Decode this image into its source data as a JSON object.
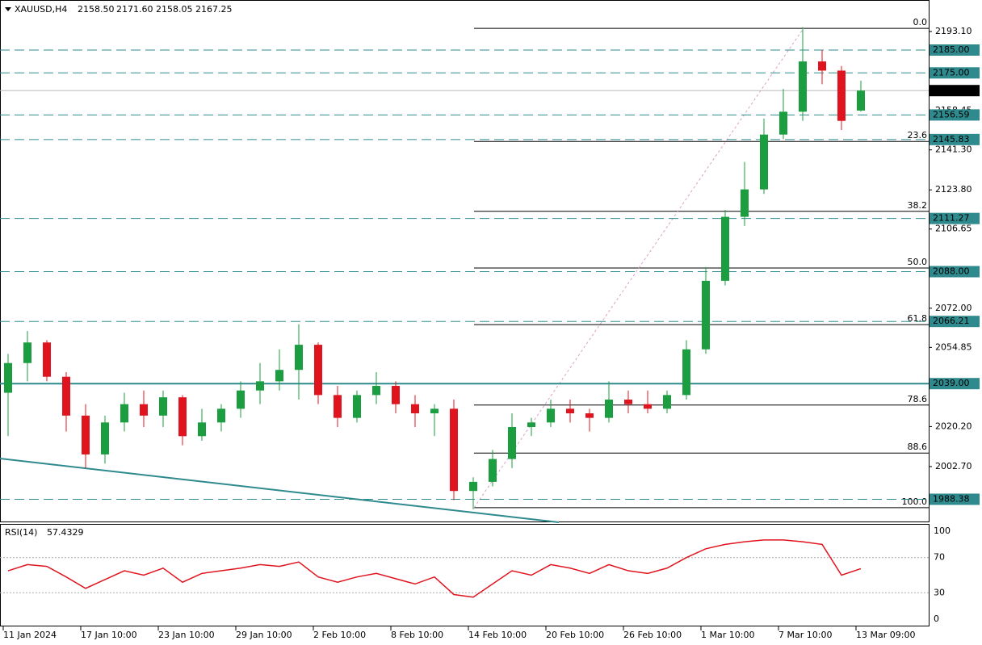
{
  "chart_data": [
    {
      "type": "candlestick",
      "title": "XAUUSD,H4",
      "header_labels": [
        "2158.50",
        "2171.60",
        "2158.05",
        "2167.25"
      ],
      "categories": [
        "11 Jan 2024",
        null,
        null,
        null,
        "17 Jan 10:00",
        null,
        null,
        null,
        "23 Jan 10:00",
        null,
        null,
        null,
        "29 Jan 10:00",
        null,
        null,
        null,
        "2 Feb 10:00",
        null,
        null,
        null,
        "8 Feb 10:00",
        null,
        null,
        null,
        "14 Feb 10:00",
        null,
        null,
        null,
        "20 Feb 10:00",
        null,
        null,
        null,
        "26 Feb 10:00",
        null,
        null,
        null,
        "1 Mar 10:00",
        null,
        null,
        null,
        "7 Mar 10:00",
        null,
        null,
        null,
        "13 Mar 09:00"
      ],
      "open": [
        2035,
        2048,
        2057,
        2042,
        2025,
        2008,
        2022,
        2030,
        2025,
        2033,
        2016,
        2022,
        2028,
        2036,
        2040,
        2045,
        2056,
        2034,
        2024,
        2034,
        2038,
        2030,
        2026,
        2028,
        1992,
        1996,
        2006,
        2020,
        2022,
        2028,
        2026,
        2024,
        2032,
        2030,
        2028,
        2034,
        2054,
        2084,
        2112,
        2124,
        2148,
        2158,
        2180,
        2176,
        2158.5
      ],
      "high": [
        2052,
        2062,
        2058,
        2044,
        2030,
        2025,
        2035,
        2036,
        2036,
        2034,
        2028,
        2030,
        2040,
        2048,
        2054,
        2065,
        2057,
        2038,
        2036,
        2044,
        2040,
        2034,
        2030,
        2032,
        1998,
        2010,
        2026,
        2024,
        2032,
        2032,
        2028,
        2040,
        2036,
        2036,
        2036,
        2058,
        2090,
        2115,
        2136,
        2155,
        2168,
        2195,
        2185,
        2178,
        2171.6
      ],
      "low": [
        2016,
        2040,
        2040,
        2018,
        2002,
        2004,
        2018,
        2020,
        2020,
        2012,
        2014,
        2018,
        2024,
        2030,
        2036,
        2032,
        2030,
        2020,
        2022,
        2030,
        2026,
        2020,
        2016,
        1988,
        1984,
        1994,
        2002,
        2016,
        2020,
        2022,
        2018,
        2022,
        2026,
        2026,
        2026,
        2032,
        2052,
        2082,
        2108,
        2122,
        2146,
        2154,
        2170,
        2150,
        2158.05
      ],
      "close": [
        2048,
        2057,
        2042,
        2025,
        2008,
        2022,
        2030,
        2025,
        2033,
        2016,
        2022,
        2028,
        2036,
        2040,
        2045,
        2056,
        2034,
        2024,
        2034,
        2038,
        2030,
        2026,
        2028,
        1992,
        1996,
        2006,
        2020,
        2022,
        2028,
        2026,
        2024,
        2032,
        2030,
        2028,
        2034,
        2054,
        2084,
        2112,
        2124,
        2148,
        2158,
        2180,
        2176,
        2154,
        2167.25
      ],
      "up_color": "#1a9e3f",
      "down_color": "#e0141e",
      "ylim": [
        1978.3,
        2206.9
      ],
      "yticks": [
        {
          "value": 2193.1,
          "label": "2193.10"
        },
        2158.45,
        {
          "value": 2141.3,
          "label": "2141.30"
        },
        {
          "value": 2123.8,
          "label": "2123.80"
        },
        2106.65,
        {
          "value": 2072.0,
          "label": "2072.00"
        },
        2054.85,
        {
          "value": 2020.2,
          "label": "2020.20"
        },
        {
          "value": 2002.7,
          "label": "2002.70"
        }
      ],
      "level_color": "#2f8a8e",
      "levels": [
        {
          "value": 2185,
          "label": "2185.00"
        },
        {
          "value": 2175,
          "label": "2175.00"
        },
        {
          "value": 2156.59,
          "label": "2156.59"
        },
        {
          "value": 2145.83,
          "label": "2145.83"
        },
        {
          "value": 2111.27,
          "label": "2111.27"
        },
        {
          "value": 2088,
          "label": "2088.00"
        },
        {
          "value": 2066.21,
          "label": "2066.21"
        },
        {
          "value": 1988.38,
          "label": "1988.38"
        }
      ],
      "support_level": {
        "value": 2039,
        "label": "2039.00"
      },
      "current_price": {
        "value": 2167.25,
        "label": "2167.25"
      },
      "fib_levels": [
        {
          "label": "0.0",
          "price": 2194.5
        },
        {
          "label": "23.6",
          "price": 2145.0
        },
        {
          "label": "38.2",
          "price": 2114.4
        },
        {
          "label": "50.0",
          "price": 2089.6
        },
        {
          "label": "61.8",
          "price": 2064.8
        },
        {
          "label": "78.6",
          "price": 2029.6
        },
        {
          "label": "88.6",
          "price": 2008.6
        },
        {
          "label": "100.0",
          "price": 1984.7
        }
      ],
      "trendline": [
        2006.2,
        1978.3
      ]
    },
    {
      "type": "line",
      "title": "RSI(14)",
      "values": [
        55,
        62,
        60,
        48,
        35,
        45,
        55,
        50,
        58,
        42,
        52,
        55,
        58,
        62,
        60,
        65,
        48,
        42,
        48,
        52,
        46,
        40,
        48,
        28,
        25,
        40,
        55,
        50,
        62,
        58,
        52,
        62,
        55,
        52,
        58,
        70,
        80,
        85,
        88,
        90,
        90,
        88,
        85,
        50,
        57.4329
      ],
      "color": "#e0141e",
      "ylim": [
        0,
        100
      ],
      "yticks": [
        100,
        70,
        30,
        0
      ],
      "levels": [
        70,
        30
      ]
    }
  ]
}
